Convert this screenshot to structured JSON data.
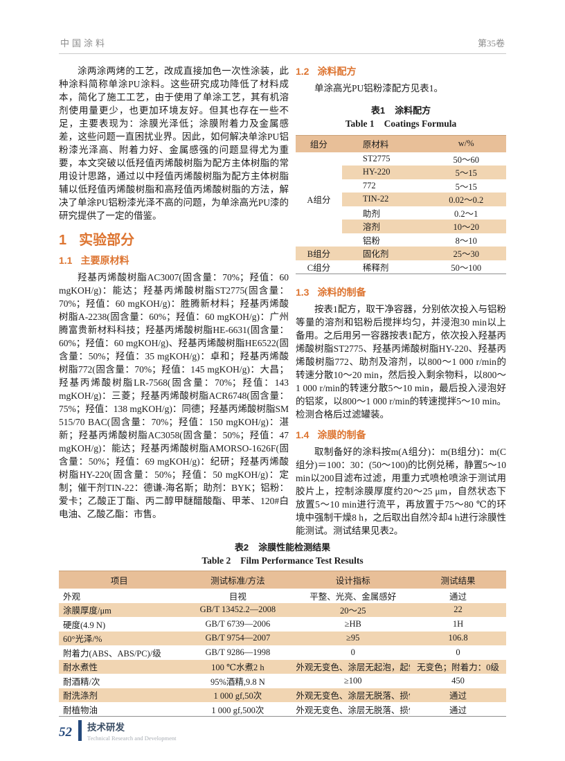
{
  "header": {
    "journal": "中国涂料",
    "volume": "第35卷"
  },
  "intro": {
    "text": "涂两涂两烤的工艺，改成直接加色一次性涂装，此种涂料简称单涂PU涂料。这些研究成功降低了材料成本，简化了施工工艺，由于使用了单涂工艺，其有机溶剂使用量更少，也更加环境友好。但其也存在一些不足，主要表现为：涂膜光泽低；涂膜附着力及金属感差，这些问题一直困扰业界。因此，如何解决单涂PU铝粉漆光泽高、附着力好、金属感强的问题显得尤为重要，本文突破以低羟值丙烯酸树脂为配方主体树脂的常用设计思路，通过以中羟值丙烯酸树脂为配方主体树脂辅以低羟值丙烯酸树脂和高羟值丙烯酸树脂的方法，解决了单涂PU铝粉漆光泽不高的问题，为单涂高光PU漆的研究提供了一定的借鉴。"
  },
  "sections": {
    "s1": {
      "num": "1",
      "title": "实验部分"
    },
    "s11": {
      "num": "1.1",
      "title": "主要原材料",
      "body": "羟基丙烯酸树脂AC3007(固含量：70%；羟值：60 mgKOH/g)：能达；羟基丙烯酸树脂ST2775(固含量：70%；羟值：60 mgKOH/g)：胜腾新材料；羟基丙烯酸树脂A-2238(固含量：60%；羟值：60 mgKOH/g)：广州腾富贵新材料科技；羟基丙烯酸树脂HE-6631(固含量：60%；羟值：60 mgKOH/g)、羟基丙烯酸树脂HE6522(固含量：50%；羟值：35 mgKOH/g)：卓和；羟基丙烯酸树脂772(固含量：70%；羟值：145 mgKOH/g)：大昌；羟基丙烯酸树脂LR-7568(固含量：70%；羟值：143 mgKOH/g)：三菱；羟基丙烯酸树脂ACR6748(固含量：75%；羟值：138 mgKOH/g)：同德；羟基丙烯酸树脂SM 515/70 BAC(固含量：70%；羟值：150 mgKOH/g)：湛新；羟基丙烯酸树脂AC3058(固含量：50%；羟值：47 mgKOH/g)：能达；羟基丙烯酸树脂AMORSO-1626F(固含量：50%；羟值：69 mgKOH/g)：纪研；羟基丙烯酸树脂HY-220(固含量：50%；羟值：50 mgKOH/g)：定制；催干剂TIN-22：德谦-海名斯；助剂：BYK；铝粉：爱卡；乙酸正丁酯、丙二醇甲醚醋酸酯、甲苯、120#白电油、乙酸乙酯：市售。"
    },
    "s12": {
      "num": "1.2",
      "title": "涂料配方",
      "body": "单涂高光PU铝粉漆配方见表1。"
    },
    "s13": {
      "num": "1.3",
      "title": "涂料的制备",
      "body": "按表1配方，取干净容器，分别依次投入与铝粉等量的溶剂和铝粉后搅拌均匀，并浸泡30 min以上备用。之后用另一容器按表1配方，依次投入羟基丙烯酸树脂ST2775、羟基丙烯酸树脂HY-220、羟基丙烯酸树脂772、助剂及溶剂，以800～1 000 r/min的转速分散10～20 min，然后投入剩余物料，以800～1 000 r/min的转速分散5～10 min，最后投入浸泡好的铝浆，以800～1 000 r/min的转速搅拌5～10 min。检测合格后过滤罐装。"
    },
    "s14": {
      "num": "1.4",
      "title": "涂膜的制备",
      "body": "取制备好的涂料按m(A组分)：m(B组分)：m(C组分)＝100：30：(50～100)的比例兑稀，静置5～10 min以200目滤布过滤，用重力式喷枪喷涂于测试用胶片上，控制涂膜厚度约20～25 μm，自然状态下放置5～10 min进行流平，再放置于75～80 ℃的环境中强制干燥8 h，之后取出自然冷却4 h进行涂膜性能测试。测试结果见表2。"
    }
  },
  "table1": {
    "label_zh": "表1",
    "title_zh": "涂料配方",
    "label_en": "Table 1",
    "title_en": "Coatings Formula",
    "headers": [
      "组分",
      "原材料",
      "w/%"
    ],
    "group_a": {
      "label": "A组分",
      "rows": [
        [
          "ST2775",
          "50～60"
        ],
        [
          "HY-220",
          "5～15"
        ],
        [
          "772",
          "5～15"
        ],
        [
          "TIN-22",
          "0.02～0.2"
        ],
        [
          "助剂",
          "0.2～1"
        ],
        [
          "溶剂",
          "10～20"
        ],
        [
          "铝粉",
          "8～10"
        ]
      ]
    },
    "rows_bc": [
      [
        "B组分",
        "固化剂",
        "25～30"
      ],
      [
        "C组分",
        "稀释剂",
        "50～100"
      ]
    ]
  },
  "table2": {
    "label_zh": "表2",
    "title_zh": "涂膜性能检测结果",
    "label_en": "Table 2",
    "title_en": "Film Performance Test Results",
    "headers": [
      "项目",
      "测试标准/方法",
      "设计指标",
      "测试结果"
    ],
    "rows": [
      [
        "外观",
        "目视",
        "平整、光亮、金属感好",
        "通过"
      ],
      [
        "涂膜厚度/μm",
        "GB/T 13452.2—2008",
        "20～25",
        "22"
      ],
      [
        "硬度(4.9 N)",
        "GB/T 6739—2006",
        "≥HB",
        "1H"
      ],
      [
        "60°光泽/%",
        "GB/T 9754—2007",
        "≥95",
        "106.8"
      ],
      [
        "附着力(ABS、ABS/PC)/级",
        "GB/T 9286—1998",
        "0",
        "0"
      ],
      [
        "耐水煮性",
        "100 ℃水煮2 h",
        "外观无变色、涂层无起泡，起皱或脱落现象",
        "无变色；附着力：0级"
      ],
      [
        "耐酒精/次",
        "95%酒精,9.8 N",
        "≥100",
        "450"
      ],
      [
        "耐洗涤剂",
        "1 000 gf,50次",
        "外观无变色、涂层无脱落、损伤等不良现象",
        "通过"
      ],
      [
        "耐植物油",
        "1 000 gf,500次",
        "外观无变色、涂层无脱落、损伤等不良现象",
        "通过"
      ]
    ]
  },
  "footer": {
    "page_number": "52",
    "dept_zh": "技术研发",
    "dept_en": "Technical Research and Development"
  },
  "colors": {
    "accent_orange": "#dd7430",
    "table_header_bg": "#e8bf98",
    "table_shade_bg": "#f1d5b2",
    "footer_blue": "#24497c"
  }
}
